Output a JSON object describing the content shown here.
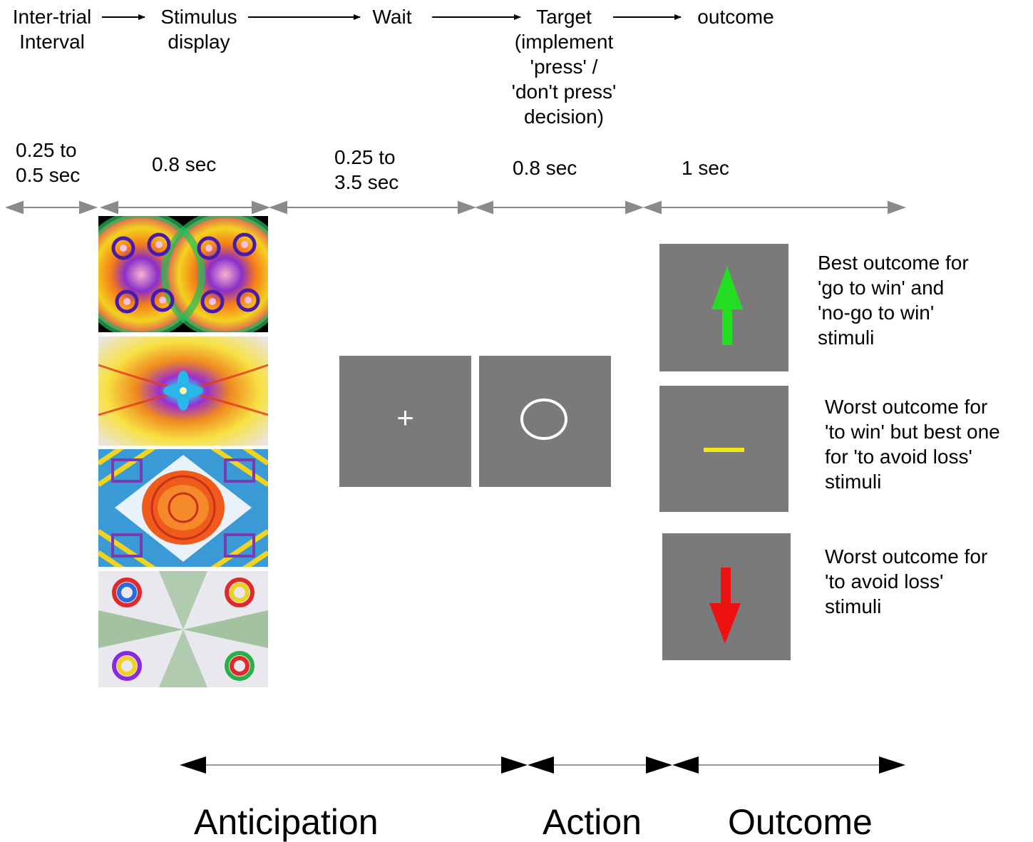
{
  "stages": [
    {
      "title": "Inter-trial\nInterval",
      "duration": "0.25 to\n0.5 sec"
    },
    {
      "title": "Stimulus\ndisplay",
      "duration": "0.8 sec"
    },
    {
      "title": "Wait",
      "duration": "0.25 to\n 3.5 sec"
    },
    {
      "title": "Target\n(implement\n'press' /\n'don't press'\ndecision)",
      "duration": "0.8 sec"
    },
    {
      "title": "outcome",
      "duration": "1 sec"
    }
  ],
  "screens": {
    "wait_symbol": "+",
    "target_symbol": "circle"
  },
  "outcomes": [
    {
      "icon": "green-up-arrow-icon",
      "color": "#22dd22",
      "description": "Best outcome for\n'go to win' and\n'no-go to win'\nstimuli"
    },
    {
      "icon": "yellow-bar-icon",
      "color": "#f2ea12",
      "description": "Worst outcome for\n'to win' but best one\nfor 'to avoid loss'\nstimuli"
    },
    {
      "icon": "red-down-arrow-icon",
      "color": "#ee1111",
      "description": "Worst outcome for\n'to avoid loss'\nstimuli"
    }
  ],
  "phases": [
    "Anticipation",
    "Action",
    "Outcome"
  ],
  "colors": {
    "screen_gray": "#7a7a7a",
    "arrow_gray": "#8a8a8a"
  }
}
